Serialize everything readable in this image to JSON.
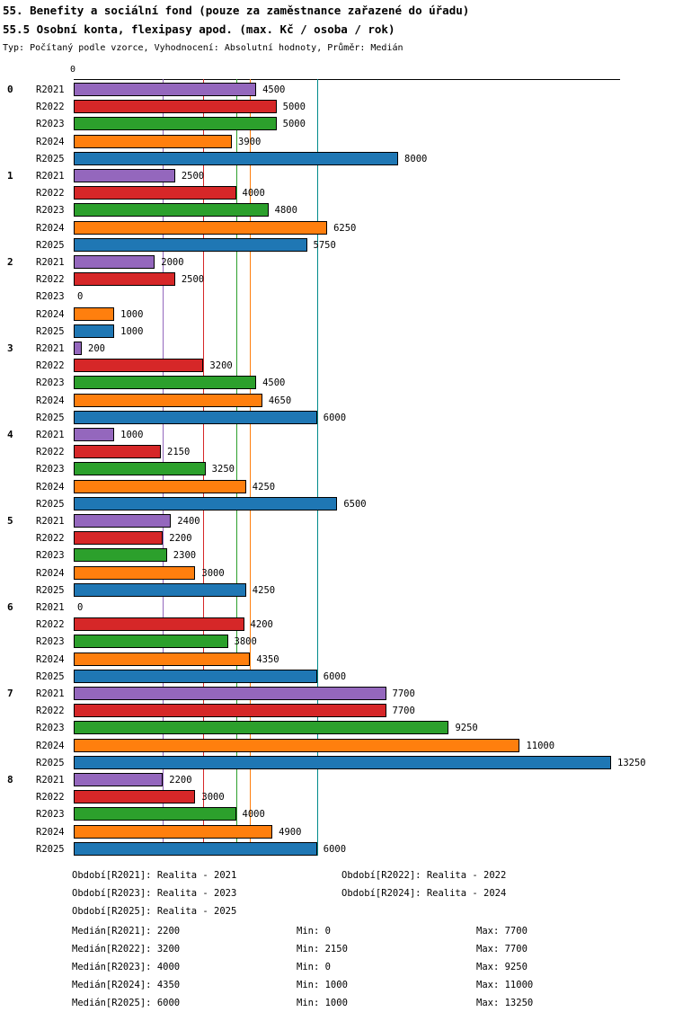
{
  "header": {
    "title": "55. Benefity a sociální fond (pouze za zaměstnance zařazené do úřadu)",
    "subtitle": "55.5 Osobní konta, flexipasy apod. (max. Kč / osoba / rok)",
    "meta": "Typ: Počítaný podle vzorce, Vyhodnocení: Absolutní hodnoty, Průměr: Medián"
  },
  "chart_data": {
    "type": "bar",
    "orientation": "horizontal",
    "x_axis_tick": "0",
    "xlim": [
      0,
      13500
    ],
    "grid": "median-lines-only",
    "series": [
      "R2021",
      "R2022",
      "R2023",
      "R2024",
      "R2025"
    ],
    "series_colors": [
      "#9467bd",
      "#d62728",
      "#2ca02c",
      "#ff7f0e",
      "#1f77b4"
    ],
    "median_line_colors": [
      "#9467bd",
      "#d62728",
      "#2ca02c",
      "#ff7f0e",
      "#008b8b"
    ],
    "medians": [
      2200,
      3200,
      4000,
      4350,
      6000
    ],
    "groups": [
      {
        "label": "0",
        "values": [
          4500,
          5000,
          5000,
          3900,
          8000
        ]
      },
      {
        "label": "1",
        "values": [
          2500,
          4000,
          4800,
          6250,
          5750
        ]
      },
      {
        "label": "2",
        "values": [
          2000,
          2500,
          0,
          1000,
          1000
        ]
      },
      {
        "label": "3",
        "values": [
          200,
          3200,
          4500,
          4650,
          6000
        ]
      },
      {
        "label": "4",
        "values": [
          1000,
          2150,
          3250,
          4250,
          6500
        ]
      },
      {
        "label": "5",
        "values": [
          2400,
          2200,
          2300,
          3000,
          4250
        ]
      },
      {
        "label": "6",
        "values": [
          0,
          4200,
          3800,
          4350,
          6000
        ]
      },
      {
        "label": "7",
        "values": [
          7700,
          7700,
          9250,
          11000,
          13250
        ]
      },
      {
        "label": "8",
        "values": [
          2200,
          3000,
          4000,
          4900,
          6000
        ]
      }
    ]
  },
  "legend": {
    "entries": [
      "Období[R2021]: Realita - 2021",
      "Období[R2022]: Realita - 2022",
      "Období[R2023]: Realita - 2023",
      "Období[R2024]: Realita - 2024",
      "Období[R2025]: Realita - 2025"
    ]
  },
  "stats": {
    "rows": [
      {
        "median": "Medián[R2021]: 2200",
        "min": "Min: 0",
        "max": "Max: 7700"
      },
      {
        "median": "Medián[R2022]: 3200",
        "min": "Min: 2150",
        "max": "Max: 7700"
      },
      {
        "median": "Medián[R2023]: 4000",
        "min": "Min: 0",
        "max": "Max: 9250"
      },
      {
        "median": "Medián[R2024]: 4350",
        "min": "Min: 1000",
        "max": "Max: 11000"
      },
      {
        "median": "Medián[R2025]: 6000",
        "min": "Min: 1000",
        "max": "Max: 13250"
      }
    ]
  }
}
